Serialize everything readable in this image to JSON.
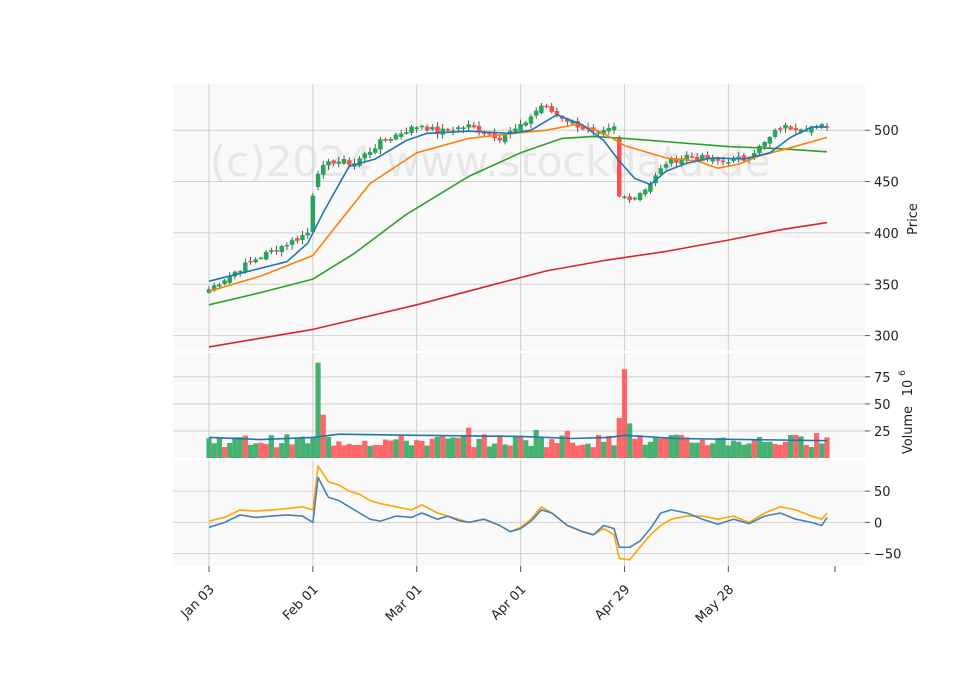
{
  "chart_data": {
    "type": "candlestick",
    "watermark": "(c)2024 www.stockdata.de",
    "colors": {
      "up": "#26a65b",
      "down": "#ff4d4d",
      "ma_fast": "#1f77b4",
      "ma_mid": "#ff7f0e",
      "ma_slow": "#2ca02c",
      "ma_long": "#d62728",
      "volume_ma": "#1f77b4",
      "osc_line1": "#4682b4",
      "osc_line2": "#ffa500",
      "panel_bg": "#f9f9f9",
      "grid": "#d0d0d0"
    },
    "x_tick_labels": [
      "Jan 03",
      "Feb 01",
      "Mar 01",
      "Apr 01",
      "Apr 29",
      "May 28"
    ],
    "x_tick_indices": [
      0,
      20,
      40,
      60,
      80,
      100
    ],
    "n_bars": 120,
    "price_panel": {
      "ylabel": "Price",
      "ylim": [
        285,
        545
      ],
      "yticks": [
        300,
        350,
        400,
        450,
        500
      ],
      "anchors": [
        [
          0,
          345
        ],
        [
          8,
          372
        ],
        [
          16,
          392
        ],
        [
          19,
          400
        ],
        [
          20,
          438
        ],
        [
          21,
          460
        ],
        [
          24,
          470
        ],
        [
          28,
          468
        ],
        [
          33,
          488
        ],
        [
          38,
          500
        ],
        [
          41,
          505
        ],
        [
          44,
          498
        ],
        [
          50,
          504
        ],
        [
          56,
          493
        ],
        [
          60,
          503
        ],
        [
          64,
          524
        ],
        [
          69,
          510
        ],
        [
          73,
          500
        ],
        [
          75,
          495
        ],
        [
          78,
          502
        ],
        [
          79,
          435
        ],
        [
          82,
          435
        ],
        [
          85,
          448
        ],
        [
          88,
          468
        ],
        [
          92,
          475
        ],
        [
          96,
          472
        ],
        [
          98,
          470
        ],
        [
          103,
          472
        ],
        [
          107,
          487
        ],
        [
          110,
          503
        ],
        [
          114,
          503
        ],
        [
          117,
          502
        ],
        [
          119,
          505
        ]
      ],
      "ma_fast": [
        [
          0,
          353
        ],
        [
          15,
          372
        ],
        [
          19,
          390
        ],
        [
          22,
          420
        ],
        [
          27,
          465
        ],
        [
          32,
          472
        ],
        [
          38,
          490
        ],
        [
          42,
          497
        ],
        [
          50,
          499
        ],
        [
          58,
          497
        ],
        [
          62,
          500
        ],
        [
          67,
          515
        ],
        [
          72,
          505
        ],
        [
          76,
          490
        ],
        [
          79,
          470
        ],
        [
          82,
          453
        ],
        [
          85,
          447
        ],
        [
          88,
          460
        ],
        [
          92,
          468
        ],
        [
          97,
          473
        ],
        [
          103,
          472
        ],
        [
          108,
          478
        ],
        [
          112,
          493
        ],
        [
          116,
          503
        ],
        [
          119,
          503
        ]
      ],
      "ma_mid": [
        [
          0,
          343
        ],
        [
          10,
          358
        ],
        [
          20,
          378
        ],
        [
          25,
          410
        ],
        [
          31,
          448
        ],
        [
          40,
          478
        ],
        [
          50,
          492
        ],
        [
          57,
          496
        ],
        [
          65,
          500
        ],
        [
          71,
          506
        ],
        [
          76,
          497
        ],
        [
          80,
          485
        ],
        [
          88,
          473
        ],
        [
          94,
          470
        ],
        [
          98,
          463
        ],
        [
          102,
          467
        ],
        [
          106,
          475
        ],
        [
          112,
          483
        ],
        [
          119,
          493
        ]
      ],
      "ma_slow": [
        [
          0,
          330
        ],
        [
          10,
          342
        ],
        [
          20,
          355
        ],
        [
          28,
          380
        ],
        [
          38,
          418
        ],
        [
          50,
          455
        ],
        [
          60,
          478
        ],
        [
          68,
          492
        ],
        [
          74,
          494
        ],
        [
          80,
          492
        ],
        [
          90,
          488
        ],
        [
          100,
          484
        ],
        [
          110,
          482
        ],
        [
          119,
          479
        ]
      ],
      "ma_long": [
        [
          0,
          289
        ],
        [
          20,
          306
        ],
        [
          40,
          330
        ],
        [
          55,
          350
        ],
        [
          65,
          363
        ],
        [
          76,
          373
        ],
        [
          88,
          382
        ],
        [
          100,
          393
        ],
        [
          110,
          403
        ],
        [
          119,
          410
        ]
      ]
    },
    "volume_panel": {
      "ylabel": "Volume",
      "unit": "10",
      "unit_exp": "6",
      "ylim": [
        0,
        97
      ],
      "yticks": [
        25,
        50,
        75
      ],
      "volume_ma": [
        [
          0,
          19
        ],
        [
          10,
          17
        ],
        [
          20,
          19
        ],
        [
          25,
          22
        ],
        [
          40,
          21
        ],
        [
          60,
          20
        ],
        [
          70,
          18
        ],
        [
          77,
          19
        ],
        [
          80,
          21
        ],
        [
          90,
          18
        ],
        [
          119,
          16
        ]
      ],
      "spikes": [
        [
          21,
          88,
          "up"
        ],
        [
          22,
          40,
          "down"
        ],
        [
          79,
          37,
          "down"
        ],
        [
          80,
          82,
          "down"
        ],
        [
          81,
          32,
          "up"
        ],
        [
          63,
          26,
          "up"
        ],
        [
          50,
          28,
          "down"
        ],
        [
          69,
          25,
          "down"
        ],
        [
          117,
          23,
          "down"
        ]
      ]
    },
    "oscillator_panel": {
      "ylim": [
        -70,
        100
      ],
      "yticks": [
        -50,
        0,
        50
      ],
      "line1": [
        [
          0,
          -8
        ],
        [
          3,
          0
        ],
        [
          6,
          12
        ],
        [
          9,
          8
        ],
        [
          12,
          10
        ],
        [
          15,
          12
        ],
        [
          18,
          10
        ],
        [
          20,
          0
        ],
        [
          21,
          72
        ],
        [
          23,
          40
        ],
        [
          25,
          35
        ],
        [
          27,
          25
        ],
        [
          29,
          15
        ],
        [
          31,
          5
        ],
        [
          33,
          2
        ],
        [
          36,
          10
        ],
        [
          39,
          8
        ],
        [
          41,
          15
        ],
        [
          44,
          5
        ],
        [
          46,
          10
        ],
        [
          48,
          3
        ],
        [
          50,
          0
        ],
        [
          53,
          5
        ],
        [
          56,
          -5
        ],
        [
          58,
          -15
        ],
        [
          60,
          -10
        ],
        [
          62,
          2
        ],
        [
          64,
          20
        ],
        [
          66,
          15
        ],
        [
          69,
          -5
        ],
        [
          72,
          -15
        ],
        [
          74,
          -20
        ],
        [
          76,
          -5
        ],
        [
          78,
          -10
        ],
        [
          79,
          -40
        ],
        [
          81,
          -40
        ],
        [
          83,
          -30
        ],
        [
          85,
          -10
        ],
        [
          87,
          15
        ],
        [
          89,
          20
        ],
        [
          92,
          15
        ],
        [
          95,
          5
        ],
        [
          98,
          -3
        ],
        [
          101,
          5
        ],
        [
          104,
          -2
        ],
        [
          107,
          10
        ],
        [
          110,
          15
        ],
        [
          113,
          5
        ],
        [
          116,
          0
        ],
        [
          118,
          -5
        ],
        [
          119,
          8
        ]
      ],
      "line2": [
        [
          0,
          2
        ],
        [
          3,
          8
        ],
        [
          6,
          20
        ],
        [
          9,
          18
        ],
        [
          12,
          20
        ],
        [
          15,
          22
        ],
        [
          18,
          25
        ],
        [
          20,
          20
        ],
        [
          21,
          90
        ],
        [
          23,
          65
        ],
        [
          25,
          60
        ],
        [
          27,
          50
        ],
        [
          29,
          45
        ],
        [
          31,
          35
        ],
        [
          33,
          30
        ],
        [
          36,
          25
        ],
        [
          39,
          20
        ],
        [
          41,
          28
        ],
        [
          44,
          15
        ],
        [
          46,
          10
        ],
        [
          48,
          5
        ],
        [
          50,
          0
        ],
        [
          53,
          5
        ],
        [
          56,
          -5
        ],
        [
          58,
          -15
        ],
        [
          60,
          -8
        ],
        [
          62,
          5
        ],
        [
          64,
          25
        ],
        [
          66,
          15
        ],
        [
          69,
          -5
        ],
        [
          72,
          -15
        ],
        [
          74,
          -20
        ],
        [
          76,
          -10
        ],
        [
          78,
          -20
        ],
        [
          79,
          -58
        ],
        [
          81,
          -60
        ],
        [
          83,
          -40
        ],
        [
          85,
          -20
        ],
        [
          87,
          -5
        ],
        [
          89,
          5
        ],
        [
          92,
          10
        ],
        [
          95,
          10
        ],
        [
          98,
          5
        ],
        [
          101,
          10
        ],
        [
          104,
          0
        ],
        [
          107,
          15
        ],
        [
          110,
          25
        ],
        [
          113,
          20
        ],
        [
          116,
          10
        ],
        [
          118,
          5
        ],
        [
          119,
          15
        ]
      ]
    }
  }
}
